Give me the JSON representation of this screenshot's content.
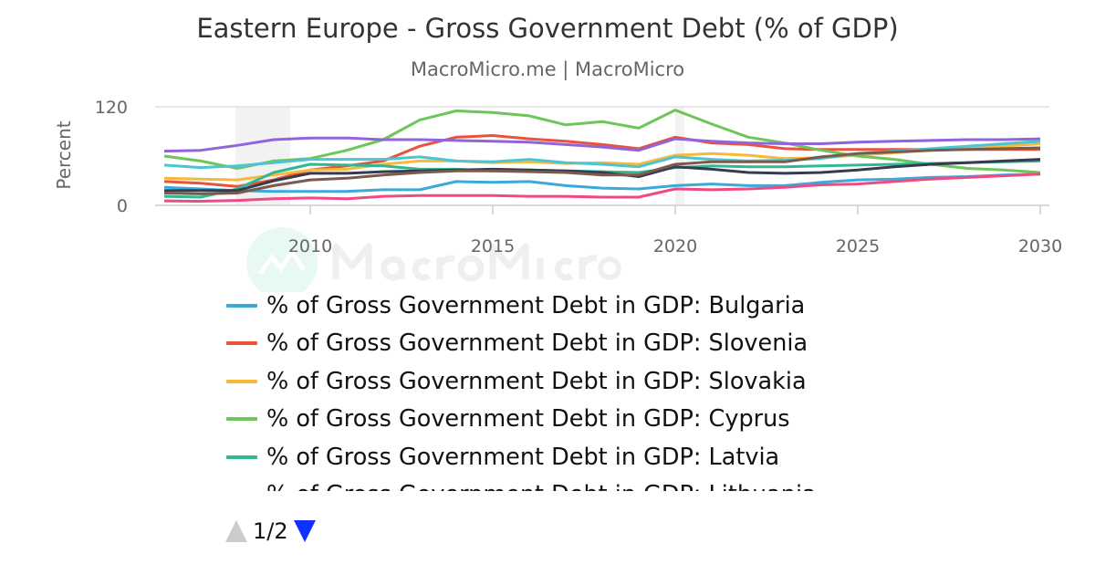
{
  "chart_data": {
    "type": "line",
    "title": "Eastern Europe - Gross Government Debt (% of GDP)",
    "subtitle": "MacroMicro.me | MacroMicro",
    "ylabel": "Percent",
    "xlabel": "",
    "ylim": [
      0,
      120
    ],
    "xlim": [
      2006,
      2030
    ],
    "y_ticks": [
      "0",
      "120"
    ],
    "x_ticks": [
      "2010",
      "2015",
      "2020",
      "2025",
      "2030"
    ],
    "grid": true,
    "legend_position": "bottom",
    "recession_bands": [
      [
        2007.95,
        2009.45
      ],
      [
        2020.0,
        2020.25
      ]
    ],
    "x": [
      2006,
      2007,
      2008,
      2009,
      2010,
      2011,
      2012,
      2013,
      2014,
      2015,
      2016,
      2017,
      2018,
      2019,
      2020,
      2021,
      2022,
      2023,
      2024,
      2025,
      2026,
      2027,
      2028,
      2029,
      2030
    ],
    "series": [
      {
        "name": "% of Gross Government Debt in GDP: Bulgaria",
        "color": "#3aa9dc",
        "values": [
          22,
          20,
          18,
          17,
          17,
          17,
          19,
          19,
          29,
          28,
          29,
          24,
          21,
          20,
          24,
          26,
          24,
          24,
          28,
          31,
          32,
          34,
          35,
          37,
          38
        ]
      },
      {
        "name": "% of Gross Government Debt in GDP: Slovenia",
        "color": "#e8533a",
        "values": [
          29,
          27,
          23,
          31,
          43,
          48,
          54,
          72,
          83,
          85,
          81,
          78,
          74,
          69,
          83,
          76,
          74,
          69,
          68,
          68,
          68,
          68,
          68,
          68,
          68
        ]
      },
      {
        "name": "% of Gross Government Debt in GDP: Slovakia",
        "color": "#f8b93b",
        "values": [
          33,
          32,
          31,
          37,
          43,
          44,
          50,
          54,
          54,
          52,
          53,
          51,
          52,
          50,
          61,
          63,
          61,
          57,
          58,
          61,
          64,
          67,
          70,
          72,
          75
        ]
      },
      {
        "name": "% of Gross Government Debt in GDP: Cyprus",
        "color": "#6cc65a",
        "values": [
          60,
          54,
          45,
          54,
          57,
          67,
          80,
          104,
          115,
          113,
          109,
          98,
          102,
          94,
          116,
          99,
          83,
          76,
          67,
          60,
          56,
          50,
          45,
          43,
          40
        ]
      },
      {
        "name": "% of Gross Government Debt in GDP: Latvia",
        "color": "#30b894",
        "values": [
          11,
          10,
          20,
          40,
          50,
          49,
          48,
          44,
          44,
          42,
          43,
          42,
          41,
          40,
          46,
          48,
          47,
          47,
          48,
          49,
          50,
          51,
          52,
          53,
          54
        ]
      },
      {
        "name": "% of Gross Government Debt in GDP: Lithuania",
        "color": "#363b4d",
        "values": [
          18,
          18,
          18,
          30,
          39,
          39,
          41,
          42,
          43,
          44,
          43,
          42,
          40,
          35,
          47,
          44,
          40,
          39,
          40,
          43,
          47,
          50,
          52,
          54,
          56
        ]
      },
      {
        "color": "#9264dc",
        "values": [
          66,
          67,
          73,
          80,
          82,
          82,
          80,
          80,
          79,
          78,
          77,
          74,
          71,
          67,
          81,
          78,
          76,
          75,
          75,
          77,
          78,
          79,
          80,
          80,
          81
        ]
      },
      {
        "color": "#4cc4d4",
        "values": [
          49,
          46,
          48,
          52,
          56,
          56,
          56,
          59,
          54,
          53,
          56,
          52,
          50,
          47,
          59,
          56,
          54,
          55,
          57,
          63,
          66,
          69,
          72,
          75,
          78
        ]
      },
      {
        "color": "#ef4b82",
        "values": [
          5.5,
          5,
          6,
          8,
          9,
          8,
          11,
          12,
          12,
          12,
          11,
          11,
          10,
          10,
          20,
          19,
          20,
          22,
          25,
          26,
          29,
          32,
          34,
          36,
          38
        ]
      },
      {
        "color": "#7b5a4e",
        "values": [
          15,
          14,
          15,
          24,
          31,
          33,
          37,
          40,
          42,
          42,
          41,
          40,
          37,
          37,
          50,
          53,
          53,
          53,
          59,
          63,
          65,
          67,
          68,
          69,
          70
        ]
      }
    ]
  },
  "legend": {
    "page_indicator": "1/2",
    "prev_icon": "triangle-up-icon",
    "next_icon": "triangle-down-icon"
  },
  "watermark": "MacroMicro"
}
